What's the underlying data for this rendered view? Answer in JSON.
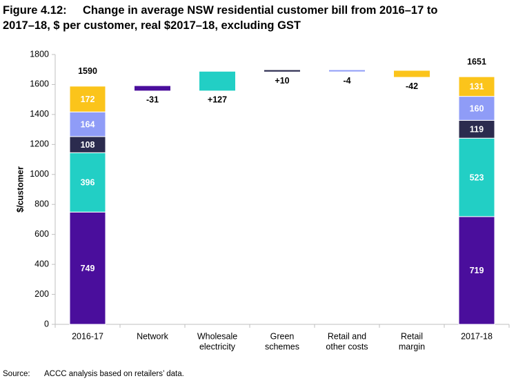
{
  "figure": {
    "number": "Figure 4.12:",
    "title_line1": "Change in average NSW residential customer bill from 2016–17 to",
    "title_line2": "2017–18, $ per customer, real $2017–18, excluding GST"
  },
  "source": {
    "label": "Source:",
    "text": "ACCC analysis based on retailers’ data."
  },
  "chart_data": {
    "type": "bar",
    "subtype": "waterfall",
    "ylabel": "$/customer",
    "ylim": [
      0,
      1800
    ],
    "yticks": [
      0,
      200,
      400,
      600,
      800,
      1000,
      1200,
      1400,
      1600,
      1800
    ],
    "grid": false,
    "legend": "none",
    "categories": [
      [
        "2016-17"
      ],
      [
        "Network"
      ],
      [
        "Wholesale",
        "electricity"
      ],
      [
        "Green",
        "schemes"
      ],
      [
        "Retail and",
        "other costs"
      ],
      [
        "Retail",
        "margin"
      ],
      [
        "2017-18"
      ]
    ],
    "stacks": [
      {
        "index": 0,
        "total": "1590",
        "segments": [
          {
            "component": "network",
            "value": 749,
            "label": "749"
          },
          {
            "component": "wholesale",
            "value": 396,
            "label": "396"
          },
          {
            "component": "green",
            "value": 108,
            "label": "108"
          },
          {
            "component": "retail_costs",
            "value": 164,
            "label": "164"
          },
          {
            "component": "retail_margin",
            "value": 172,
            "label": "172"
          }
        ]
      },
      {
        "index": 6,
        "total": "1651",
        "segments": [
          {
            "component": "network",
            "value": 719,
            "label": "719"
          },
          {
            "component": "wholesale",
            "value": 523,
            "label": "523"
          },
          {
            "component": "green",
            "value": 119,
            "label": "119"
          },
          {
            "component": "retail_costs",
            "value": 160,
            "label": "160"
          },
          {
            "component": "retail_margin",
            "value": 131,
            "label": "131"
          }
        ]
      }
    ],
    "changes": [
      {
        "index": 1,
        "component": "network",
        "from": 1590,
        "to": 1559,
        "label": "-31"
      },
      {
        "index": 2,
        "component": "wholesale",
        "from": 1559,
        "to": 1686,
        "label": "+127"
      },
      {
        "index": 3,
        "component": "green",
        "from": 1686,
        "to": 1696,
        "label": "+10"
      },
      {
        "index": 4,
        "component": "retail_costs",
        "from": 1696,
        "to": 1692,
        "label": "-4"
      },
      {
        "index": 5,
        "component": "retail_margin",
        "from": 1692,
        "to": 1650,
        "label": "-42"
      }
    ],
    "colors": {
      "network": "#4a0e9c",
      "wholesale": "#22cfc5",
      "green": "#2b2b4e",
      "retail_costs": "#8f9cf7",
      "retail_margin": "#fbc41b"
    },
    "label_colors": {
      "network": "#ffffff",
      "wholesale": "#ffffff",
      "green": "#ffffff",
      "retail_costs": "#ffffff",
      "retail_margin": "#ffffff"
    }
  }
}
